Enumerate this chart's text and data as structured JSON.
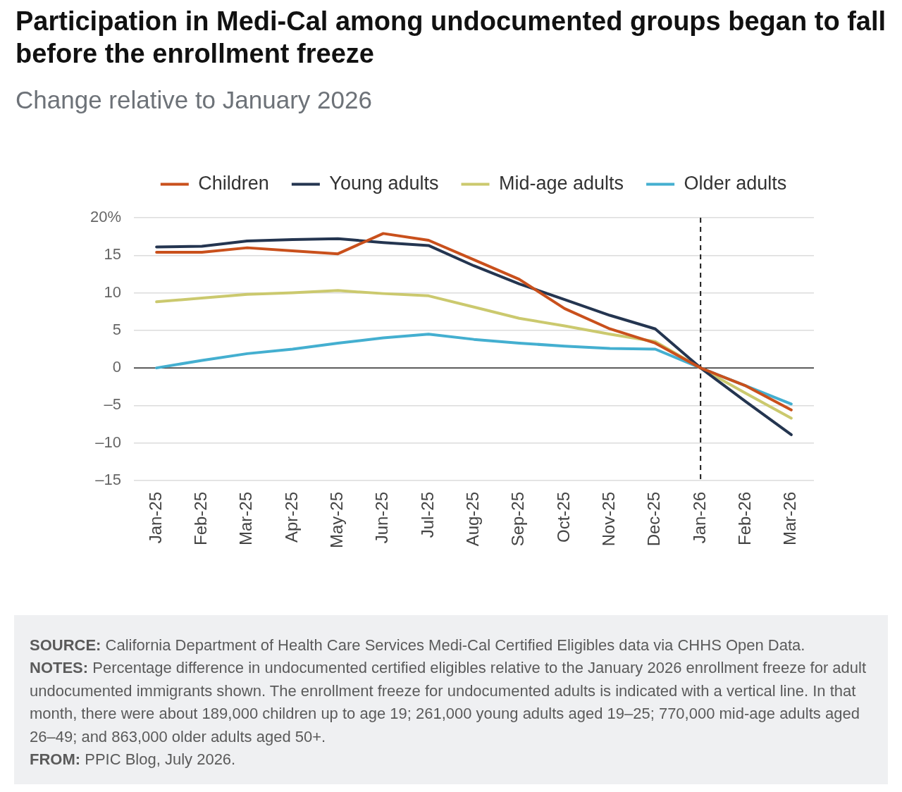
{
  "chart_data": {
    "type": "line",
    "title": "Participation in Medi-Cal among undocumented groups began to fall before the enrollment freeze",
    "subtitle": "Change relative to January 2026",
    "categories": [
      "Jan-25",
      "Feb-25",
      "Mar-25",
      "Apr-25",
      "May-25",
      "Jun-25",
      "Jul-25",
      "Aug-25",
      "Sep-25",
      "Oct-25",
      "Nov-25",
      "Dec-25",
      "Jan-26",
      "Feb-26",
      "Mar-26"
    ],
    "series": [
      {
        "name": "Children",
        "color": "#c9501c",
        "values": [
          15.4,
          15.4,
          16.0,
          15.6,
          15.2,
          17.9,
          17.0,
          14.4,
          11.8,
          7.9,
          5.2,
          3.3,
          0,
          -2.4,
          -5.6
        ]
      },
      {
        "name": "Young adults",
        "color": "#243550",
        "values": [
          16.1,
          16.2,
          16.9,
          17.1,
          17.2,
          16.7,
          16.3,
          13.6,
          11.2,
          9.1,
          7.0,
          5.2,
          0,
          -4.5,
          -8.9
        ]
      },
      {
        "name": "Mid-age adults",
        "color": "#cbc96e",
        "values": [
          8.8,
          9.3,
          9.8,
          10.0,
          10.3,
          9.9,
          9.6,
          8.1,
          6.6,
          5.6,
          4.5,
          3.5,
          0,
          -3.4,
          -6.7
        ]
      },
      {
        "name": "Older adults",
        "color": "#44afd0",
        "values": [
          0,
          1.0,
          1.9,
          2.5,
          3.3,
          4.0,
          4.5,
          3.8,
          3.3,
          2.9,
          2.6,
          2.5,
          0,
          -2.4,
          -4.8
        ]
      }
    ],
    "ylim": [
      -15,
      20
    ],
    "yticks": [
      {
        "value": -15,
        "label": "–15"
      },
      {
        "value": -10,
        "label": "–10"
      },
      {
        "value": -5,
        "label": "–5"
      },
      0,
      5,
      10,
      15,
      {
        "value": 20,
        "label": "20%"
      }
    ],
    "grid": "y",
    "legend": "top",
    "marker": "none",
    "line_style": "solid",
    "ref_lines": [
      {
        "axis": "y",
        "value": 0,
        "color": "#333333"
      },
      {
        "axis": "x",
        "value": "Jan-26",
        "color": "#1a1a1a",
        "line_style": "dashed"
      }
    ],
    "annotations": [
      "SOURCE: California Department of Health Care Services Medi-Cal Certified Eligibles data via CHHS Open Data.",
      "NOTES: Percentage difference in undocumented certified eligibles relative to the January 2026 enrollment freeze for adult undocumented immigrants shown. The enrollment freeze for undocumented adults is indicated with a vertical line. In that month, there were about 189,000 children up to age 19; 261,000 young adults aged 19–25; 770,000 mid-age adults aged 26–49; and 863,000 older adults aged 50+.",
      "FROM: PPIC Blog, July 2026."
    ]
  }
}
